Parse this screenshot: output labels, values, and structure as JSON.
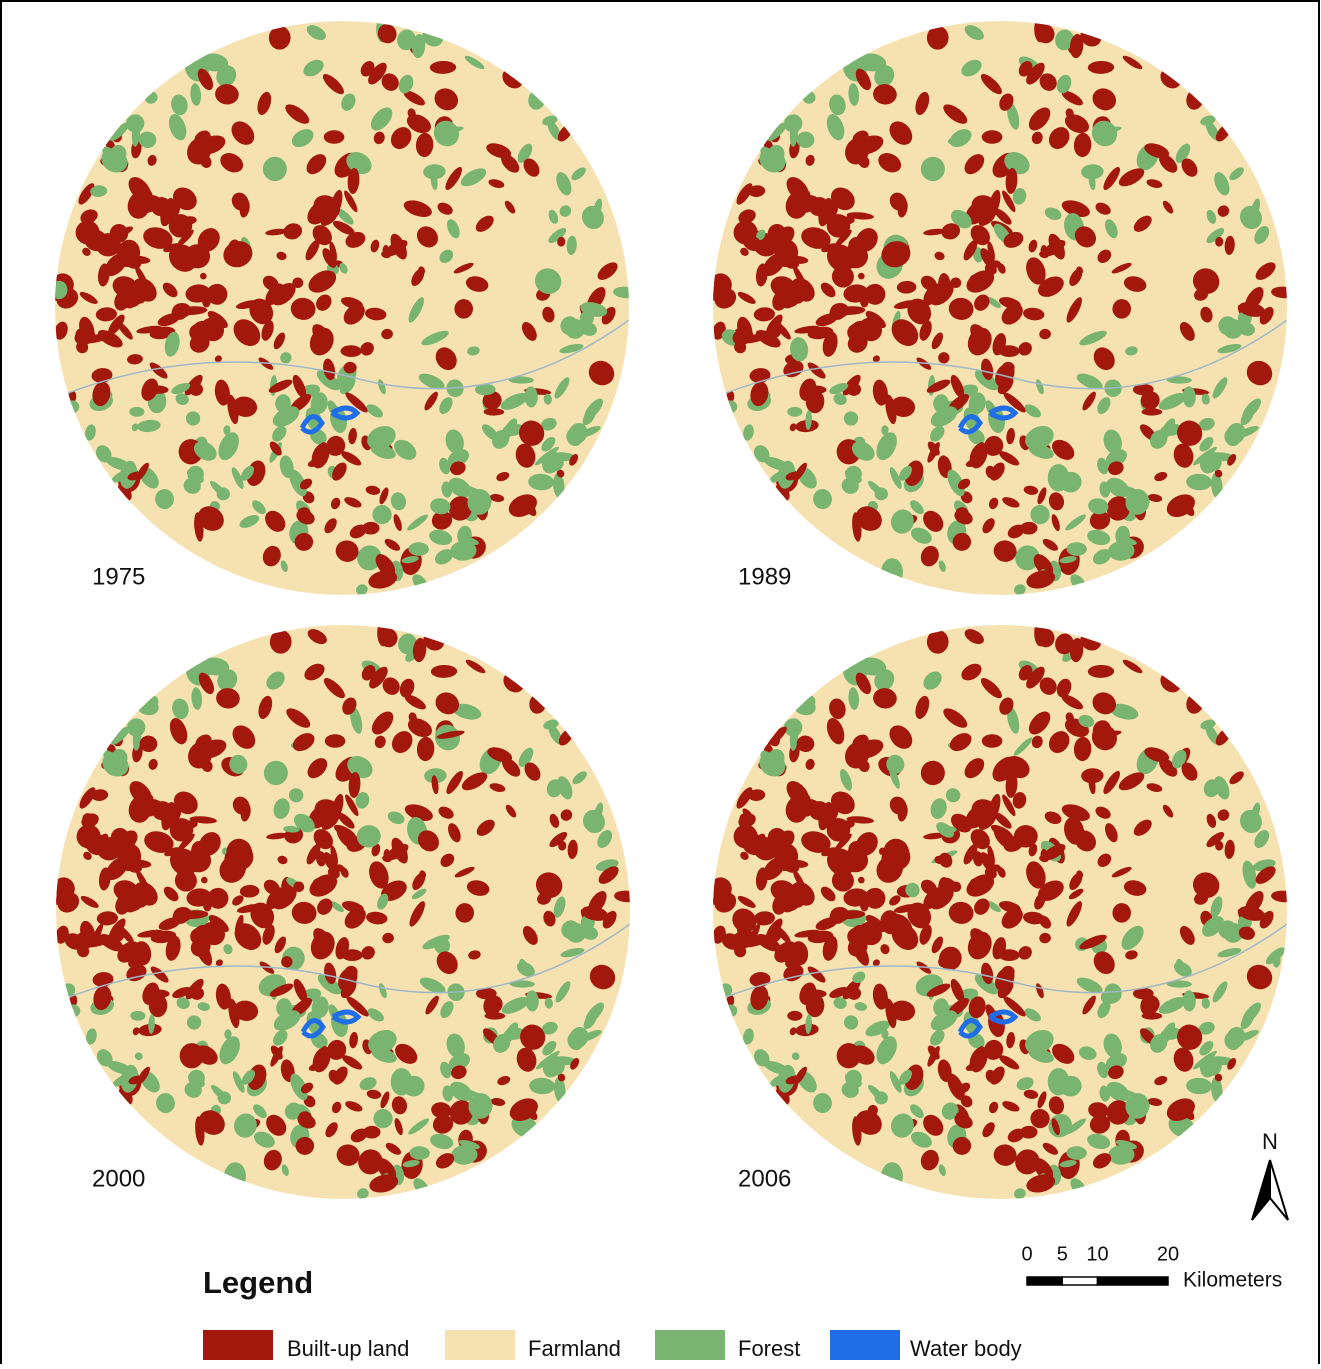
{
  "maps": [
    {
      "year": "1975"
    },
    {
      "year": "1989"
    },
    {
      "year": "2000"
    },
    {
      "year": "2006"
    }
  ],
  "legend": {
    "title": "Legend",
    "items": [
      {
        "label": "Built-up land",
        "color": "#a3180c"
      },
      {
        "label": "Farmland",
        "color": "#f6e2b0"
      },
      {
        "label": "Forest",
        "color": "#79b470"
      },
      {
        "label": "Water body",
        "color": "#1f6ee8"
      }
    ]
  },
  "scale_bar": {
    "ticks": [
      0,
      5,
      10,
      20
    ],
    "unit": "Kilometers"
  },
  "north_arrow": {
    "label": "N"
  }
}
